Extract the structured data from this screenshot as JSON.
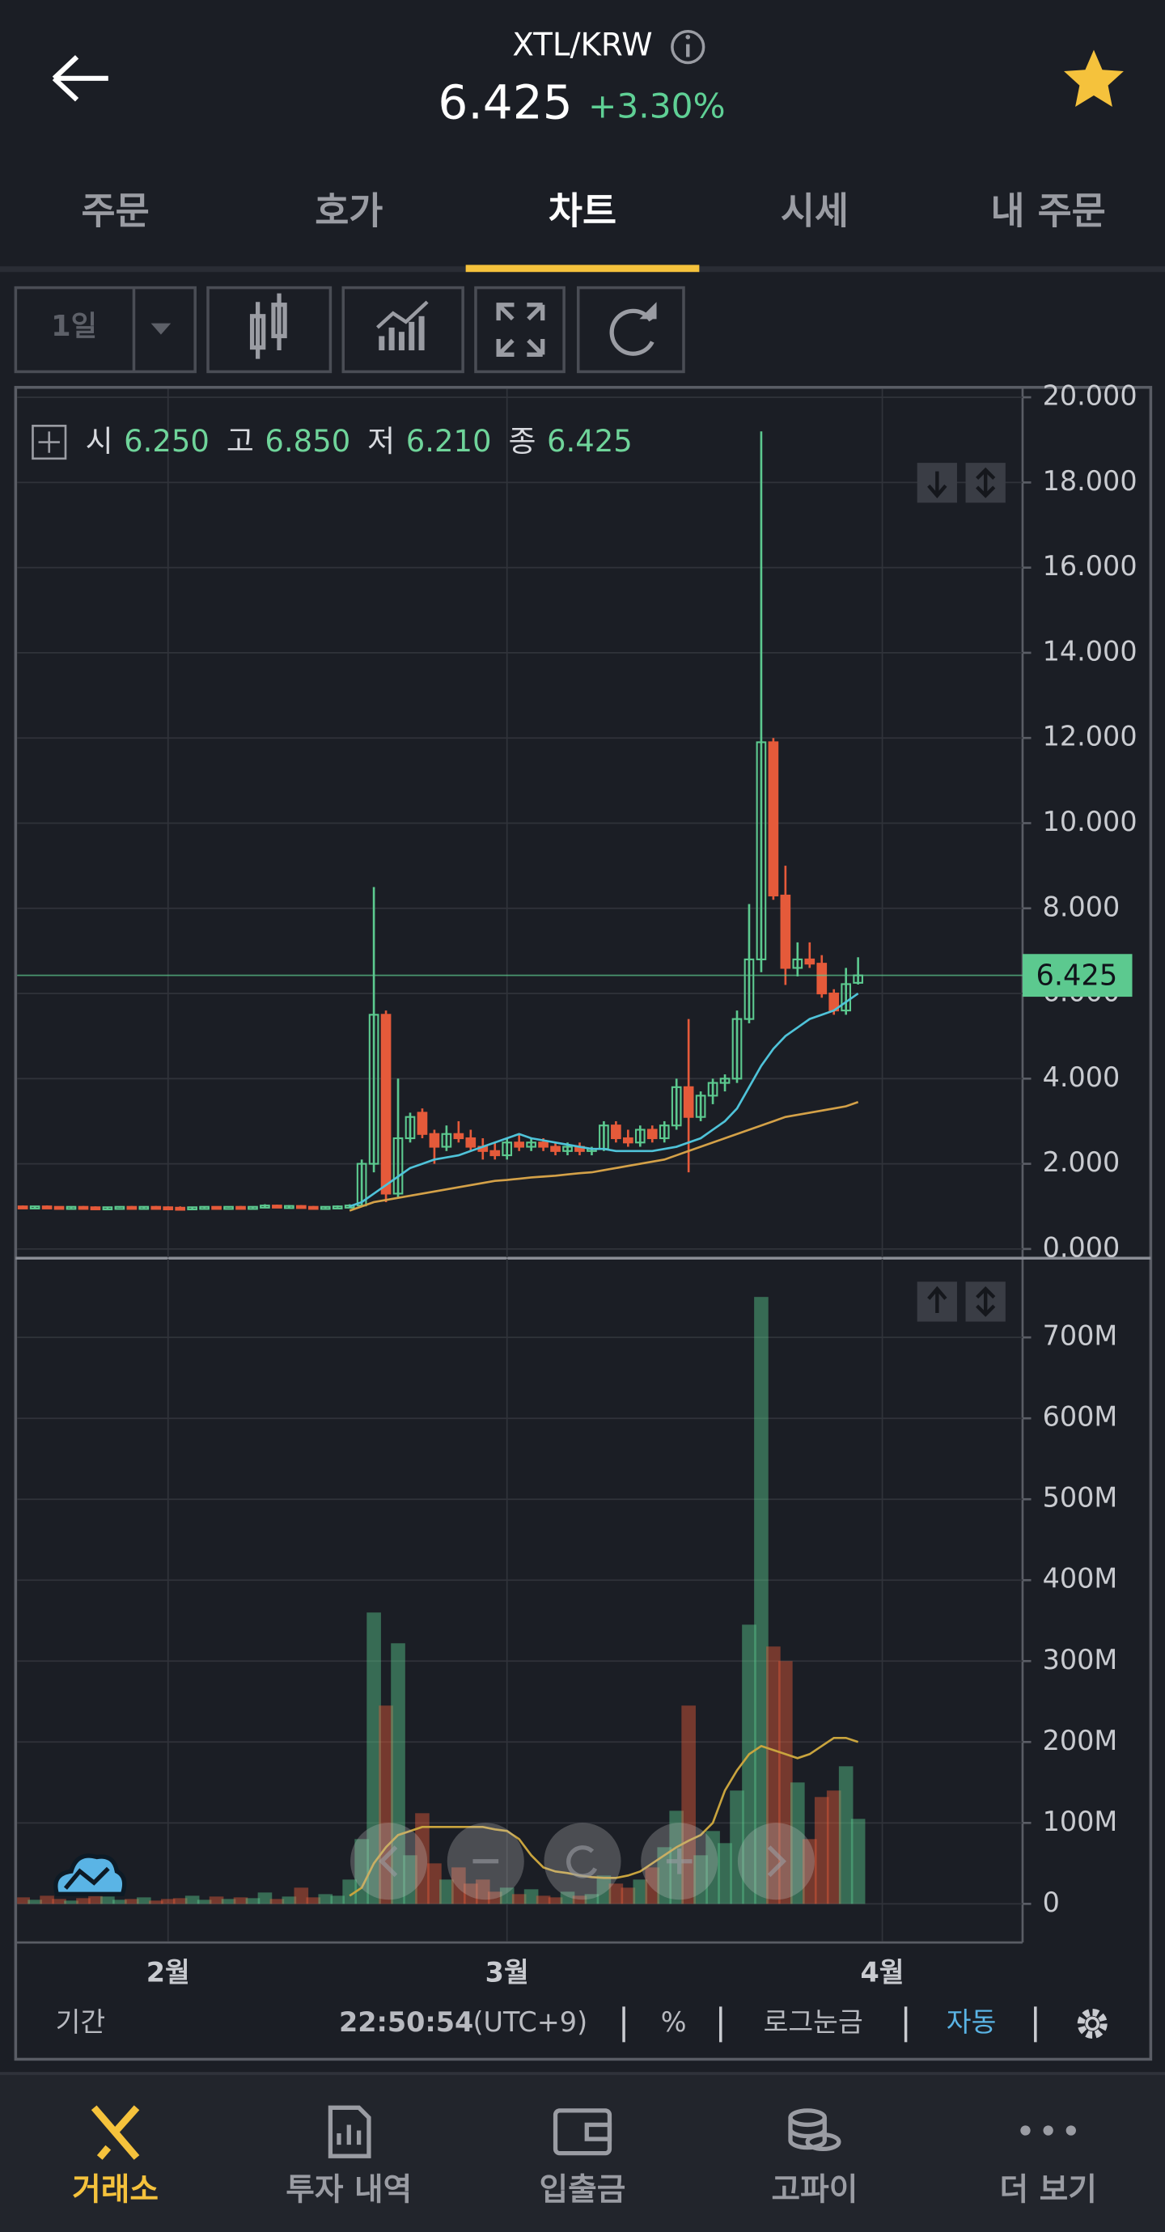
{
  "header": {
    "pair": "XTL/KRW",
    "price": "6.425",
    "change": "+3.30%"
  },
  "tabs": [
    "주문",
    "호가",
    "차트",
    "시세",
    "내 주문"
  ],
  "toolbar": {
    "interval": "1일"
  },
  "ohlc_legend": [
    {
      "label": "시",
      "value": "6.250"
    },
    {
      "label": "고",
      "value": "6.850"
    },
    {
      "label": "저",
      "value": "6.210"
    },
    {
      "label": "종",
      "value": "6.425"
    }
  ],
  "footer": {
    "period": "기간",
    "time": "22:50:54",
    "tz": "(UTC+9)",
    "percent": "%",
    "log": "로그눈금",
    "auto": "자동"
  },
  "nav": [
    "거래소",
    "투자 내역",
    "입출금",
    "고파이",
    "더 보기"
  ],
  "chart_data": [
    {
      "type": "candlestick",
      "categories": [
        null,
        null,
        null,
        null,
        null,
        null,
        null,
        null,
        null,
        null,
        null,
        null,
        "2월",
        null,
        null,
        null,
        null,
        null,
        null,
        null,
        null,
        null,
        null,
        null,
        null,
        null,
        null,
        null,
        null,
        null,
        null,
        null,
        null,
        null,
        null,
        null,
        null,
        null,
        null,
        null,
        "3월",
        null,
        null,
        null,
        null,
        null,
        null,
        null,
        null,
        null,
        null,
        null,
        null,
        null,
        null,
        null,
        null,
        null,
        null,
        null,
        null,
        null,
        null,
        null,
        null,
        null,
        null,
        null,
        null,
        null,
        null,
        "4월"
      ],
      "open": [
        1.0,
        0.98,
        1.0,
        0.99,
        0.97,
        0.99,
        0.98,
        0.95,
        0.98,
        0.99,
        0.98,
        0.99,
        0.98,
        0.97,
        0.94,
        0.98,
        0.99,
        0.98,
        0.99,
        0.98,
        0.99,
        1.02,
        0.99,
        1.01,
        0.99,
        0.98,
        0.99,
        1.0,
        1.02,
        2.0,
        5.5,
        1.3,
        2.6,
        3.2,
        2.7,
        2.4,
        2.7,
        2.6,
        2.4,
        2.3,
        2.2,
        2.5,
        2.4,
        2.5,
        2.4,
        2.3,
        2.4,
        2.3,
        2.35,
        2.9,
        2.6,
        2.5,
        2.8,
        2.6,
        2.9,
        3.8,
        3.1,
        3.6,
        3.9,
        4.0,
        5.4,
        6.8,
        11.9,
        8.3,
        6.6,
        6.8,
        6.7,
        6.0,
        5.6,
        6.25,
        null,
        null
      ],
      "high": [
        1.02,
        1.01,
        1.02,
        1.0,
        1.0,
        1.01,
        1.0,
        0.99,
        1.0,
        1.01,
        1.0,
        1.01,
        1.0,
        1.0,
        0.99,
        1.0,
        1.0,
        1.0,
        1.01,
        1.0,
        1.05,
        1.04,
        1.03,
        1.03,
        1.01,
        1.0,
        1.02,
        1.05,
        2.1,
        8.5,
        5.6,
        4.0,
        3.2,
        3.3,
        2.8,
        2.9,
        3.0,
        2.8,
        2.6,
        2.5,
        2.6,
        2.7,
        2.6,
        2.6,
        2.5,
        2.5,
        2.5,
        2.4,
        3.0,
        3.0,
        2.8,
        2.9,
        2.9,
        3.0,
        4.0,
        5.4,
        3.7,
        4.0,
        4.1,
        5.6,
        8.1,
        19.2,
        12.0,
        9.0,
        7.2,
        7.2,
        6.9,
        6.1,
        6.6,
        6.85,
        null,
        null
      ],
      "low": [
        0.97,
        0.96,
        0.98,
        0.95,
        0.96,
        0.97,
        0.93,
        0.94,
        0.97,
        0.97,
        0.96,
        0.97,
        0.96,
        0.92,
        0.93,
        0.96,
        0.97,
        0.97,
        0.97,
        0.96,
        0.97,
        0.98,
        0.97,
        0.98,
        0.97,
        0.96,
        0.97,
        0.98,
        1.0,
        1.8,
        1.1,
        1.2,
        2.5,
        2.6,
        2.0,
        2.3,
        2.5,
        2.3,
        2.1,
        2.1,
        2.1,
        2.3,
        2.3,
        2.3,
        2.2,
        2.2,
        2.2,
        2.2,
        2.3,
        2.5,
        2.4,
        2.4,
        2.5,
        2.5,
        2.8,
        1.8,
        3.0,
        3.4,
        3.7,
        3.9,
        5.3,
        6.5,
        8.2,
        6.2,
        6.4,
        6.6,
        5.9,
        5.5,
        5.5,
        6.21,
        null,
        null
      ],
      "close": [
        0.98,
        1.0,
        0.99,
        0.97,
        0.99,
        0.98,
        0.95,
        0.98,
        0.99,
        0.98,
        0.99,
        0.98,
        0.97,
        0.94,
        0.98,
        0.99,
        0.98,
        0.99,
        0.98,
        0.99,
        1.02,
        0.99,
        1.01,
        0.99,
        0.98,
        0.99,
        1.0,
        1.02,
        2.0,
        5.5,
        1.3,
        2.6,
        3.1,
        2.7,
        2.4,
        2.7,
        2.6,
        2.4,
        2.3,
        2.2,
        2.5,
        2.4,
        2.5,
        2.4,
        2.3,
        2.4,
        2.3,
        2.35,
        2.9,
        2.6,
        2.5,
        2.8,
        2.6,
        2.9,
        3.8,
        3.1,
        3.6,
        3.9,
        4.0,
        5.4,
        6.8,
        11.9,
        8.3,
        6.6,
        6.8,
        6.7,
        6.0,
        5.6,
        6.22,
        6.425,
        null,
        null
      ],
      "up_color": "#5cc98f",
      "down_color": "#e55a3a",
      "series": [
        {
          "color": "#4fc3d9",
          "values": [
            null,
            null,
            null,
            null,
            null,
            null,
            null,
            null,
            null,
            null,
            null,
            null,
            null,
            null,
            null,
            null,
            null,
            null,
            null,
            null,
            null,
            null,
            null,
            null,
            null,
            null,
            null,
            1.0,
            1.1,
            1.3,
            1.5,
            1.7,
            1.9,
            2.0,
            2.1,
            2.15,
            2.2,
            2.3,
            2.4,
            2.5,
            2.6,
            2.7,
            2.6,
            2.55,
            2.5,
            2.45,
            2.4,
            2.35,
            2.35,
            2.3,
            2.3,
            2.3,
            2.3,
            2.35,
            2.4,
            2.5,
            2.6,
            2.8,
            3.0,
            3.3,
            3.8,
            4.3,
            4.7,
            5.0,
            5.2,
            5.4,
            5.5,
            5.6,
            5.8,
            6.0,
            null,
            null
          ]
        },
        {
          "color": "#d4a148",
          "values": [
            null,
            null,
            null,
            null,
            null,
            null,
            null,
            null,
            null,
            null,
            null,
            null,
            null,
            null,
            null,
            null,
            null,
            null,
            null,
            null,
            null,
            null,
            null,
            null,
            null,
            null,
            null,
            0.9,
            1.0,
            1.1,
            1.15,
            1.2,
            1.25,
            1.3,
            1.35,
            1.4,
            1.45,
            1.5,
            1.55,
            1.6,
            1.62,
            1.65,
            1.68,
            1.7,
            1.72,
            1.75,
            1.78,
            1.8,
            1.85,
            1.9,
            1.95,
            2.0,
            2.05,
            2.1,
            2.2,
            2.3,
            2.4,
            2.5,
            2.6,
            2.7,
            2.8,
            2.9,
            3.0,
            3.1,
            3.15,
            3.2,
            3.25,
            3.3,
            3.35,
            3.45,
            null,
            null
          ]
        }
      ],
      "last_price_label": "6.425",
      "ylim": [
        -0.2,
        20.2
      ],
      "yticks": [
        {
          "value": 0,
          "label": "0.000"
        },
        {
          "value": 2,
          "label": "2.000"
        },
        {
          "value": 4,
          "label": "4.000"
        },
        {
          "value": 6,
          "label": "6.000"
        },
        {
          "value": 8,
          "label": "8.000"
        },
        {
          "value": 10,
          "label": "10.000"
        },
        {
          "value": 12,
          "label": "12.000"
        },
        {
          "value": 14,
          "label": "14.000"
        },
        {
          "value": 16,
          "label": "16.000"
        },
        {
          "value": 18,
          "label": "18.000"
        },
        {
          "value": 20,
          "label": "20.000"
        }
      ],
      "grid": true
    },
    {
      "type": "bar",
      "values": [
        8000000,
        5000000,
        10000000,
        6000000,
        4000000,
        7000000,
        12000000,
        9000000,
        5000000,
        6000000,
        8000000,
        4000000,
        6000000,
        7000000,
        10000000,
        5000000,
        9000000,
        6000000,
        8000000,
        7000000,
        14000000,
        6000000,
        9000000,
        20000000,
        8000000,
        12000000,
        10000000,
        30000000,
        80000000,
        360000000,
        245000000,
        322000000,
        60000000,
        112000000,
        50000000,
        30000000,
        45000000,
        25000000,
        30000000,
        15000000,
        20000000,
        12000000,
        18000000,
        10000000,
        8000000,
        15000000,
        10000000,
        12000000,
        35000000,
        25000000,
        20000000,
        30000000,
        45000000,
        70000000,
        115000000,
        245000000,
        60000000,
        90000000,
        75000000,
        140000000,
        345000000,
        750000000,
        318000000,
        300000000,
        150000000,
        80000000,
        132000000,
        140000000,
        170000000,
        105000000,
        null,
        null
      ],
      "opacity": 0.45,
      "series": [
        {
          "color": "#c9a43e",
          "values": [
            null,
            null,
            null,
            null,
            null,
            null,
            null,
            null,
            null,
            null,
            null,
            null,
            null,
            null,
            null,
            null,
            null,
            null,
            null,
            null,
            null,
            null,
            null,
            null,
            null,
            null,
            null,
            10000000,
            20000000,
            50000000,
            70000000,
            85000000,
            90000000,
            95000000,
            95000000,
            95000000,
            95000000,
            95000000,
            95000000,
            92000000,
            90000000,
            80000000,
            60000000,
            45000000,
            40000000,
            38000000,
            35000000,
            33000000,
            32000000,
            32000000,
            35000000,
            40000000,
            50000000,
            60000000,
            70000000,
            78000000,
            85000000,
            100000000,
            140000000,
            165000000,
            185000000,
            195000000,
            190000000,
            185000000,
            180000000,
            185000000,
            195000000,
            205000000,
            205000000,
            200000000,
            null,
            null
          ]
        }
      ],
      "ylim": [
        -46000000,
        797000000
      ],
      "yticks": [
        0,
        {
          "value": 100000000,
          "label": "100M"
        },
        {
          "value": 200000000,
          "label": "200M"
        },
        {
          "value": 300000000,
          "label": "300M"
        },
        {
          "value": 400000000,
          "label": "400M"
        },
        {
          "value": 500000000,
          "label": "500M"
        },
        {
          "value": 600000000,
          "label": "600M"
        },
        {
          "value": 700000000,
          "label": "700M"
        }
      ],
      "grid": true
    }
  ]
}
